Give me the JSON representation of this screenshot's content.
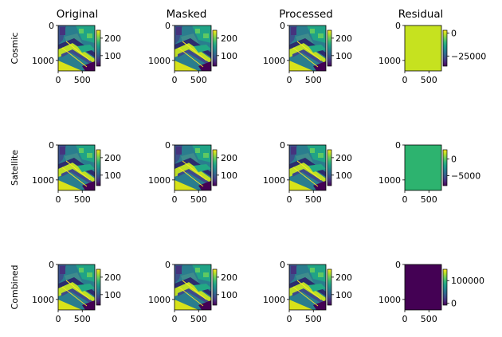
{
  "chart_data": {
    "type": "heatmap",
    "layout": "3x4 grid of image panels with colorbars",
    "colormap": "viridis",
    "column_titles": [
      "Original",
      "Masked",
      "Processed",
      "Residual"
    ],
    "row_labels": [
      "Cosmic",
      "Satellite",
      "Combined"
    ],
    "image_axes": {
      "x_ticks": [
        0,
        500
      ],
      "x_tick_labels": [
        "0",
        "500"
      ],
      "y_ticks": [
        0,
        1000
      ],
      "y_tick_labels": [
        "0",
        "1000"
      ]
    },
    "panels": [
      {
        "row": "Cosmic",
        "column": "Original",
        "content": "scene",
        "colorbar_ticks": [
          100,
          200
        ],
        "colorbar_tick_labels": [
          "100",
          "200"
        ],
        "vmin": 40,
        "vmax": 245
      },
      {
        "row": "Cosmic",
        "column": "Masked",
        "content": "scene",
        "colorbar_ticks": [
          100,
          200
        ],
        "colorbar_tick_labels": [
          "100",
          "200"
        ],
        "vmin": 40,
        "vmax": 245
      },
      {
        "row": "Cosmic",
        "column": "Processed",
        "content": "scene",
        "colorbar_ticks": [
          100,
          200
        ],
        "colorbar_tick_labels": [
          "100",
          "200"
        ],
        "vmin": 40,
        "vmax": 245
      },
      {
        "row": "Cosmic",
        "column": "Residual",
        "content": "uniform",
        "uniform_color": "#c6e21f",
        "colorbar_ticks": [
          -25000,
          0
        ],
        "colorbar_tick_labels": [
          "−25000",
          "0"
        ],
        "vmin": -36000,
        "vmax": 3000
      },
      {
        "row": "Satellite",
        "column": "Original",
        "content": "scene",
        "colorbar_ticks": [
          100,
          200
        ],
        "colorbar_tick_labels": [
          "100",
          "200"
        ],
        "vmin": 40,
        "vmax": 245
      },
      {
        "row": "Satellite",
        "column": "Masked",
        "content": "scene",
        "colorbar_ticks": [
          100,
          200
        ],
        "colorbar_tick_labels": [
          "100",
          "200"
        ],
        "vmin": 40,
        "vmax": 245
      },
      {
        "row": "Satellite",
        "column": "Processed",
        "content": "scene",
        "colorbar_ticks": [
          100,
          200
        ],
        "colorbar_tick_labels": [
          "100",
          "200"
        ],
        "vmin": 40,
        "vmax": 245
      },
      {
        "row": "Satellite",
        "column": "Residual",
        "content": "uniform",
        "uniform_color": "#2db36f",
        "colorbar_ticks": [
          -5000,
          0
        ],
        "colorbar_tick_labels": [
          "−5000",
          "0"
        ],
        "vmin": -8000,
        "vmax": 2800
      },
      {
        "row": "Combined",
        "column": "Original",
        "content": "scene",
        "colorbar_ticks": [
          100,
          200
        ],
        "colorbar_tick_labels": [
          "100",
          "200"
        ],
        "vmin": 40,
        "vmax": 245
      },
      {
        "row": "Combined",
        "column": "Masked",
        "content": "scene",
        "colorbar_ticks": [
          100,
          200
        ],
        "colorbar_tick_labels": [
          "100",
          "200"
        ],
        "vmin": 40,
        "vmax": 245
      },
      {
        "row": "Combined",
        "column": "Processed",
        "content": "scene",
        "colorbar_ticks": [
          100,
          200
        ],
        "colorbar_tick_labels": [
          "100",
          "200"
        ],
        "vmin": 40,
        "vmax": 245
      },
      {
        "row": "Combined",
        "column": "Residual",
        "content": "uniform",
        "uniform_color": "#440154",
        "colorbar_ticks": [
          0,
          100000
        ],
        "colorbar_tick_labels": [
          "0",
          "100000"
        ],
        "vmin": -8000,
        "vmax": 150000
      }
    ]
  }
}
